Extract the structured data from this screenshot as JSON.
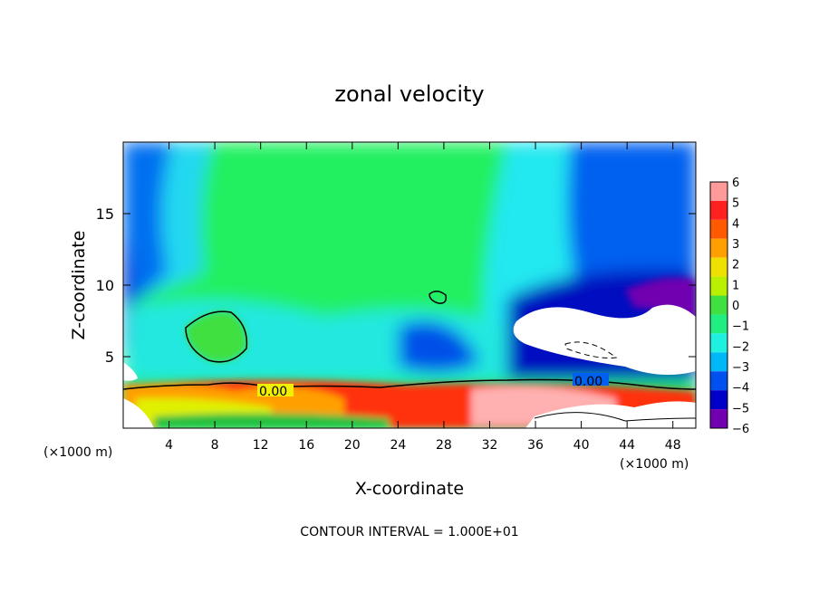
{
  "chart_data": {
    "type": "heatmap",
    "title": "zonal velocity",
    "xlabel": "X-coordinate",
    "ylabel": "Z-coordinate",
    "x_unit_left": "(×1000 m)",
    "x_unit_right": "(×1000 m)",
    "xlim": [
      0,
      50
    ],
    "ylim": [
      0,
      20
    ],
    "x_ticks": [
      4,
      8,
      12,
      16,
      20,
      24,
      28,
      32,
      36,
      40,
      44,
      48
    ],
    "y_ticks": [
      5,
      10,
      15
    ],
    "colorbar": {
      "levels": [
        6,
        5,
        4,
        3,
        2,
        1,
        0,
        -1,
        -2,
        -3,
        -4,
        -5,
        -6
      ],
      "labels": [
        "6",
        "5",
        "4",
        "3",
        "2",
        "1",
        "0",
        "−1",
        "−2",
        "−3",
        "−4",
        "−5",
        "−6"
      ],
      "colors": [
        "#ff9a9a",
        "#ff2020",
        "#ff5a00",
        "#ffa000",
        "#f0e000",
        "#b8f000",
        "#40e040",
        "#20ee80",
        "#20f0e0",
        "#00b8f8",
        "#0050f0",
        "#0000c8",
        "#7000b0"
      ]
    },
    "contour_labels": [
      "0.00",
      "0.00"
    ],
    "footer": "CONTOUR INTERVAL = 1.000E+01"
  }
}
